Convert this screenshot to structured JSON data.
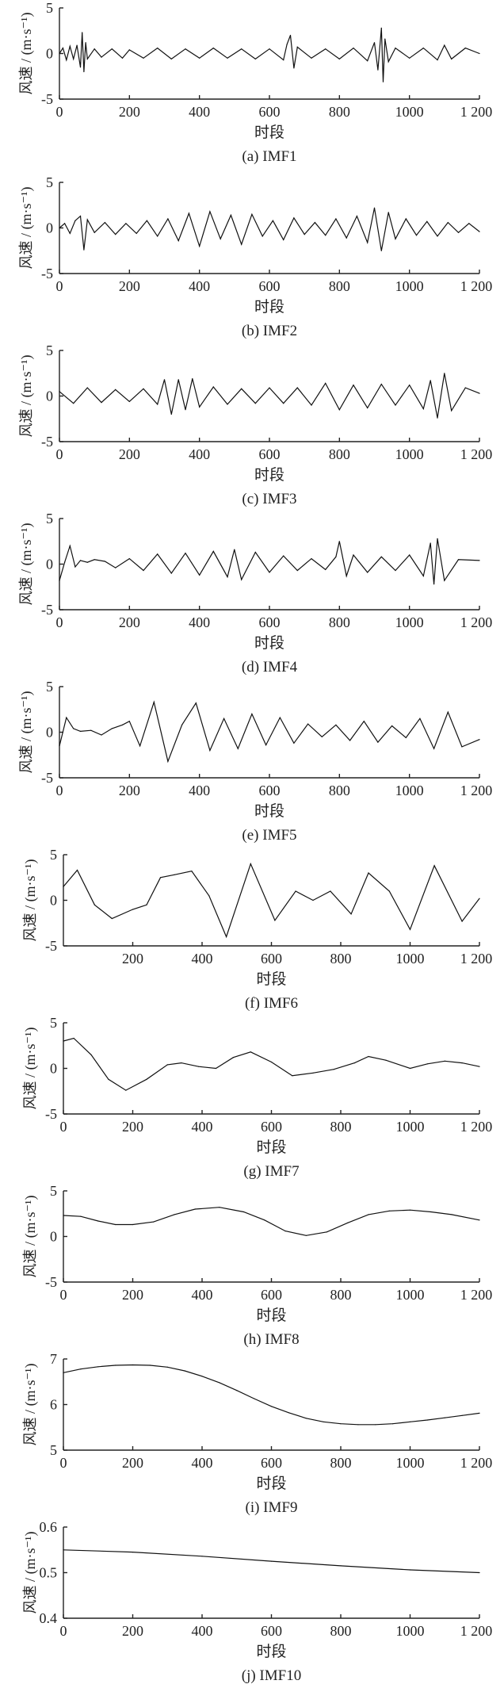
{
  "figure": {
    "panels": [
      {
        "caption": "(a)  IMF1",
        "xlabel": "时段",
        "ylabel": "风速 / (m·s⁻¹)",
        "xlim": [
          0,
          1200
        ],
        "xticks": [
          "0",
          "200",
          "400",
          "600",
          "800",
          "1000",
          "1 200"
        ],
        "ylim": [
          -5,
          5
        ],
        "yticks": [
          "-5",
          "0",
          "5"
        ]
      },
      {
        "caption": "(b)  IMF2",
        "xlabel": "时段",
        "ylabel": "风速 / (m·s⁻¹)",
        "xlim": [
          0,
          1200
        ],
        "xticks": [
          "0",
          "200",
          "400",
          "600",
          "800",
          "1000",
          "1 200"
        ],
        "ylim": [
          -5,
          5
        ],
        "yticks": [
          "-5",
          "0",
          "5"
        ]
      },
      {
        "caption": "(c)  IMF3",
        "xlabel": "时段",
        "ylabel": "风速 / (m·s⁻¹)",
        "xlim": [
          0,
          1200
        ],
        "xticks": [
          "0",
          "200",
          "400",
          "600",
          "800",
          "1000",
          "1 200"
        ],
        "ylim": [
          -5,
          5
        ],
        "yticks": [
          "-5",
          "0",
          "5"
        ]
      },
      {
        "caption": "(d)  IMF4",
        "xlabel": "时段",
        "ylabel": "风速 / (m·s⁻¹)",
        "xlim": [
          0,
          1200
        ],
        "xticks": [
          "0",
          "200",
          "400",
          "600",
          "800",
          "1000",
          "1 200"
        ],
        "ylim": [
          -5,
          5
        ],
        "yticks": [
          "-5",
          "0",
          "5"
        ]
      },
      {
        "caption": "(e)  IMF5",
        "xlabel": "时段",
        "ylabel": "风速 / (m·s⁻¹)",
        "xlim": [
          0,
          1200
        ],
        "xticks": [
          "0",
          "200",
          "400",
          "600",
          "800",
          "1000",
          "1 200"
        ],
        "ylim": [
          -5,
          5
        ],
        "yticks": [
          "-5",
          "0",
          "5"
        ]
      },
      {
        "caption": "(f)  IMF6",
        "xlabel": "时段",
        "ylabel": "风速 / (m·s⁻¹)",
        "xlim": [
          0,
          1200
        ],
        "xticks": [
          "200",
          "400",
          "600",
          "800",
          "1000",
          "1 200"
        ],
        "ylim": [
          -5,
          5
        ],
        "yticks": [
          "-5",
          "0",
          "5"
        ]
      },
      {
        "caption": "(g)  IMF7",
        "xlabel": "时段",
        "ylabel": "风速 / (m·s⁻¹)",
        "xlim": [
          0,
          1200
        ],
        "xticks": [
          "0",
          "200",
          "400",
          "600",
          "800",
          "1000",
          "1 200"
        ],
        "ylim": [
          -5,
          5
        ],
        "yticks": [
          "-5",
          "0",
          "5"
        ]
      },
      {
        "caption": "(h)  IMF8",
        "xlabel": "时段",
        "ylabel": "风速 / (m·s⁻¹)",
        "xlim": [
          0,
          1200
        ],
        "xticks": [
          "0",
          "200",
          "400",
          "600",
          "800",
          "1000",
          "1 200"
        ],
        "ylim": [
          -5,
          5
        ],
        "yticks": [
          "-5",
          "0",
          "5"
        ]
      },
      {
        "caption": "(i)  IMF9",
        "xlabel": "时段",
        "ylabel": "风速 / (m·s⁻¹)",
        "xlim": [
          0,
          1200
        ],
        "xticks": [
          "0",
          "200",
          "400",
          "600",
          "800",
          "1000",
          "1 200"
        ],
        "ylim": [
          5,
          7
        ],
        "yticks": [
          "5",
          "6",
          "7"
        ]
      },
      {
        "caption": "(j)  IMF10",
        "xlabel": "时段",
        "ylabel": "风速 / (m·s⁻¹)",
        "xlim": [
          0,
          1200
        ],
        "xticks": [
          "0",
          "200",
          "400",
          "600",
          "800",
          "1000",
          "1 200"
        ],
        "ylim": [
          0.4,
          0.6
        ],
        "yticks": [
          "0.4",
          "0.5",
          "0.6"
        ]
      }
    ]
  },
  "chart_data": [
    {
      "type": "line",
      "title": "",
      "xlabel": "时段",
      "ylabel": "风速 / (m·s⁻¹)",
      "xlim": [
        0,
        1200
      ],
      "ylim": [
        -5,
        5
      ],
      "grid": false,
      "x": [
        0,
        10,
        20,
        30,
        40,
        50,
        60,
        65,
        70,
        75,
        80,
        100,
        120,
        150,
        180,
        200,
        240,
        280,
        320,
        360,
        400,
        440,
        480,
        520,
        560,
        600,
        640,
        650,
        660,
        670,
        680,
        720,
        760,
        800,
        840,
        880,
        900,
        910,
        920,
        925,
        930,
        940,
        960,
        1000,
        1040,
        1080,
        1100,
        1120,
        1160,
        1200
      ],
      "values": [
        0,
        0.6,
        -0.7,
        0.8,
        -0.6,
        0.9,
        -1.5,
        2.3,
        -2.0,
        1.2,
        -0.6,
        0.5,
        -0.4,
        0.5,
        -0.5,
        0.4,
        -0.5,
        0.6,
        -0.6,
        0.5,
        -0.5,
        0.6,
        -0.5,
        0.5,
        -0.6,
        0.5,
        -0.7,
        1.0,
        2.0,
        -1.6,
        0.7,
        -0.5,
        0.5,
        -0.6,
        0.6,
        -0.8,
        1.2,
        -1.8,
        2.8,
        -3.1,
        1.6,
        -0.9,
        0.6,
        -0.5,
        0.6,
        -0.7,
        0.9,
        -0.6,
        0.6,
        0
      ]
    },
    {
      "type": "line",
      "title": "",
      "xlabel": "时段",
      "ylabel": "风速 / (m·s⁻¹)",
      "xlim": [
        0,
        1200
      ],
      "ylim": [
        -5,
        5
      ],
      "grid": false,
      "x": [
        0,
        15,
        30,
        45,
        60,
        70,
        80,
        100,
        130,
        160,
        190,
        220,
        250,
        280,
        310,
        340,
        370,
        400,
        430,
        460,
        490,
        520,
        550,
        580,
        610,
        640,
        670,
        700,
        730,
        760,
        790,
        820,
        850,
        880,
        900,
        920,
        940,
        960,
        990,
        1020,
        1050,
        1080,
        1110,
        1140,
        1170,
        1200
      ],
      "values": [
        0,
        0.5,
        -0.6,
        0.8,
        1.3,
        -2.4,
        0.9,
        -0.5,
        0.6,
        -0.7,
        0.5,
        -0.6,
        0.8,
        -0.9,
        1.0,
        -1.4,
        1.6,
        -2.0,
        1.8,
        -1.2,
        1.4,
        -1.8,
        1.5,
        -0.9,
        0.8,
        -1.3,
        1.1,
        -0.7,
        0.6,
        -0.8,
        1.0,
        -1.1,
        1.3,
        -1.6,
        2.2,
        -2.5,
        1.7,
        -1.2,
        1.0,
        -0.8,
        0.7,
        -0.9,
        0.6,
        -0.5,
        0.5,
        -0.4
      ]
    },
    {
      "type": "line",
      "title": "",
      "xlabel": "时段",
      "ylabel": "风速 / (m·s⁻¹)",
      "xlim": [
        0,
        1200
      ],
      "ylim": [
        -5,
        5
      ],
      "grid": false,
      "x": [
        0,
        40,
        80,
        120,
        160,
        200,
        240,
        280,
        300,
        320,
        340,
        360,
        380,
        400,
        440,
        480,
        520,
        560,
        600,
        640,
        680,
        720,
        760,
        800,
        840,
        880,
        920,
        960,
        1000,
        1040,
        1060,
        1080,
        1100,
        1120,
        1160,
        1200
      ],
      "values": [
        0.5,
        -0.8,
        0.9,
        -0.7,
        0.7,
        -0.6,
        0.8,
        -0.9,
        1.8,
        -2.0,
        1.8,
        -1.5,
        1.9,
        -1.2,
        1.0,
        -0.9,
        0.8,
        -0.8,
        0.9,
        -0.8,
        0.9,
        -1.0,
        1.4,
        -1.5,
        1.2,
        -1.3,
        1.3,
        -1.0,
        1.2,
        -1.4,
        1.7,
        -2.4,
        2.5,
        -1.6,
        0.9,
        0.3
      ]
    },
    {
      "type": "line",
      "title": "",
      "xlabel": "时段",
      "ylabel": "风速 / (m·s⁻¹)",
      "xlim": [
        0,
        1200
      ],
      "ylim": [
        -5,
        5
      ],
      "grid": false,
      "x": [
        0,
        15,
        30,
        45,
        60,
        80,
        100,
        130,
        160,
        200,
        240,
        280,
        320,
        360,
        400,
        440,
        480,
        500,
        520,
        560,
        600,
        640,
        680,
        720,
        760,
        790,
        800,
        820,
        840,
        880,
        920,
        960,
        1000,
        1040,
        1060,
        1070,
        1080,
        1100,
        1140,
        1200
      ],
      "values": [
        -1.8,
        0.2,
        2.0,
        -0.3,
        0.4,
        0.2,
        0.5,
        0.3,
        -0.4,
        0.6,
        -0.7,
        1.1,
        -1.0,
        1.2,
        -1.2,
        1.4,
        -1.4,
        1.6,
        -1.7,
        1.3,
        -0.9,
        0.9,
        -0.7,
        0.6,
        -0.6,
        0.8,
        2.5,
        -1.3,
        1.0,
        -0.9,
        0.8,
        -0.7,
        1.0,
        -1.3,
        2.3,
        -2.2,
        2.8,
        -1.8,
        0.5,
        0.4
      ]
    },
    {
      "type": "line",
      "title": "",
      "xlabel": "时段",
      "ylabel": "风速 / (m·s⁻¹)",
      "xlim": [
        0,
        1200
      ],
      "ylim": [
        -5,
        5
      ],
      "grid": false,
      "x": [
        0,
        20,
        40,
        60,
        90,
        120,
        150,
        180,
        200,
        230,
        270,
        310,
        350,
        390,
        430,
        470,
        510,
        550,
        590,
        630,
        670,
        710,
        750,
        790,
        830,
        870,
        910,
        950,
        990,
        1030,
        1070,
        1110,
        1150,
        1200
      ],
      "values": [
        -1.5,
        1.6,
        0.4,
        0.1,
        0.2,
        -0.3,
        0.4,
        0.8,
        1.2,
        -1.5,
        3.3,
        -3.2,
        0.8,
        3.2,
        -2.0,
        1.5,
        -1.8,
        2.0,
        -1.4,
        1.6,
        -1.2,
        0.9,
        -0.5,
        0.8,
        -0.9,
        1.2,
        -1.1,
        0.7,
        -0.6,
        1.5,
        -1.8,
        2.2,
        -1.6,
        -0.8
      ]
    },
    {
      "type": "line",
      "title": "",
      "xlabel": "时段",
      "ylabel": "风速 / (m·s⁻¹)",
      "xlim": [
        0,
        1200
      ],
      "ylim": [
        -5,
        5
      ],
      "grid": false,
      "x": [
        0,
        40,
        90,
        140,
        200,
        240,
        280,
        320,
        370,
        420,
        470,
        540,
        610,
        670,
        720,
        770,
        830,
        880,
        940,
        1000,
        1070,
        1150,
        1200
      ],
      "values": [
        1.5,
        3.3,
        -0.5,
        -2.0,
        -1.0,
        -0.5,
        2.5,
        2.8,
        3.2,
        0.5,
        -4.0,
        4.0,
        -2.2,
        1.0,
        0.0,
        1.0,
        -1.5,
        3.0,
        1.0,
        -3.2,
        3.8,
        -2.3,
        0.2
      ]
    },
    {
      "type": "line",
      "title": "",
      "xlabel": "时段",
      "ylabel": "风速 / (m·s⁻¹)",
      "xlim": [
        0,
        1200
      ],
      "ylim": [
        -5,
        5
      ],
      "grid": false,
      "x": [
        0,
        30,
        80,
        130,
        180,
        240,
        300,
        340,
        390,
        440,
        490,
        540,
        600,
        660,
        720,
        780,
        840,
        880,
        930,
        1000,
        1050,
        1100,
        1150,
        1200
      ],
      "values": [
        3.0,
        3.3,
        1.5,
        -1.2,
        -2.4,
        -1.2,
        0.4,
        0.6,
        0.2,
        0.0,
        1.2,
        1.8,
        0.7,
        -0.8,
        -0.5,
        -0.1,
        0.6,
        1.3,
        0.9,
        0.0,
        0.5,
        0.8,
        0.6,
        0.2
      ]
    },
    {
      "type": "line",
      "title": "",
      "xlabel": "时段",
      "ylabel": "风速 / (m·s⁻¹)",
      "xlim": [
        0,
        1200
      ],
      "ylim": [
        -5,
        5
      ],
      "grid": false,
      "x": [
        0,
        50,
        100,
        150,
        200,
        260,
        320,
        380,
        450,
        520,
        580,
        640,
        700,
        760,
        820,
        880,
        940,
        1000,
        1060,
        1120,
        1200
      ],
      "values": [
        2.3,
        2.2,
        1.7,
        1.3,
        1.3,
        1.6,
        2.4,
        3.0,
        3.2,
        2.7,
        1.8,
        0.6,
        0.1,
        0.5,
        1.5,
        2.4,
        2.8,
        2.9,
        2.7,
        2.4,
        1.8
      ]
    },
    {
      "type": "line",
      "title": "",
      "xlabel": "时段",
      "ylabel": "风速 / (m·s⁻¹)",
      "xlim": [
        0,
        1200
      ],
      "ylim": [
        5,
        7
      ],
      "grid": false,
      "x": [
        0,
        50,
        100,
        150,
        200,
        250,
        300,
        350,
        400,
        450,
        500,
        550,
        600,
        650,
        700,
        750,
        800,
        850,
        900,
        950,
        1000,
        1050,
        1100,
        1150,
        1200
      ],
      "values": [
        6.7,
        6.78,
        6.83,
        6.86,
        6.87,
        6.86,
        6.82,
        6.74,
        6.62,
        6.48,
        6.31,
        6.13,
        5.96,
        5.82,
        5.7,
        5.62,
        5.58,
        5.56,
        5.56,
        5.58,
        5.62,
        5.66,
        5.71,
        5.76,
        5.81
      ]
    },
    {
      "type": "line",
      "title": "",
      "xlabel": "时段",
      "ylabel": "风速 / (m·s⁻¹)",
      "xlim": [
        0,
        1200
      ],
      "ylim": [
        0.4,
        0.6
      ],
      "grid": false,
      "x": [
        0,
        200,
        400,
        600,
        800,
        1000,
        1200
      ],
      "values": [
        0.55,
        0.545,
        0.536,
        0.525,
        0.515,
        0.506,
        0.5
      ]
    }
  ]
}
